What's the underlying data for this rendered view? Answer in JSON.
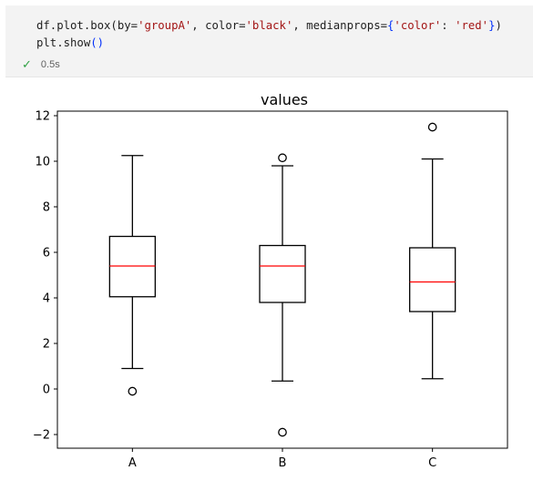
{
  "cell": {
    "code_line_1_parts": [
      {
        "text": "df.plot.box(by=",
        "cls": ""
      },
      {
        "text": "'groupA'",
        "cls": "tok-str"
      },
      {
        "text": ", color=",
        "cls": ""
      },
      {
        "text": "'black'",
        "cls": "tok-str"
      },
      {
        "text": ", medianprops=",
        "cls": ""
      },
      {
        "text": "{",
        "cls": "tok-brace"
      },
      {
        "text": "'color'",
        "cls": "tok-str"
      },
      {
        "text": ": ",
        "cls": ""
      },
      {
        "text": "'red'",
        "cls": "tok-str"
      },
      {
        "text": "}",
        "cls": "tok-brace"
      },
      {
        "text": ")",
        "cls": "tok-paren"
      }
    ],
    "code_line_2_parts": [
      {
        "text": "plt.show",
        "cls": ""
      },
      {
        "text": "()",
        "cls": "tok-brace"
      }
    ],
    "status_icon": "check-icon",
    "exec_time": "0.5s"
  },
  "chart_data": {
    "type": "box",
    "title": "values",
    "xlabel": "",
    "ylabel": "",
    "categories": [
      "A",
      "B",
      "C"
    ],
    "ylim": [
      -2.6,
      12.2
    ],
    "yticks": [
      -2,
      0,
      2,
      4,
      6,
      8,
      10,
      12
    ],
    "box_color": "#000000",
    "median_color": "#ff0000",
    "boxes": [
      {
        "name": "A",
        "whisker_low": 0.9,
        "q1": 4.05,
        "median": 5.4,
        "q3": 6.7,
        "whisker_high": 10.25,
        "outliers": [
          -0.1
        ]
      },
      {
        "name": "B",
        "whisker_low": 0.35,
        "q1": 3.8,
        "median": 5.4,
        "q3": 6.3,
        "whisker_high": 9.8,
        "outliers": [
          10.15,
          -1.9
        ]
      },
      {
        "name": "C",
        "whisker_low": 0.45,
        "q1": 3.4,
        "median": 4.7,
        "q3": 6.2,
        "whisker_high": 10.1,
        "outliers": [
          11.5
        ]
      }
    ]
  }
}
